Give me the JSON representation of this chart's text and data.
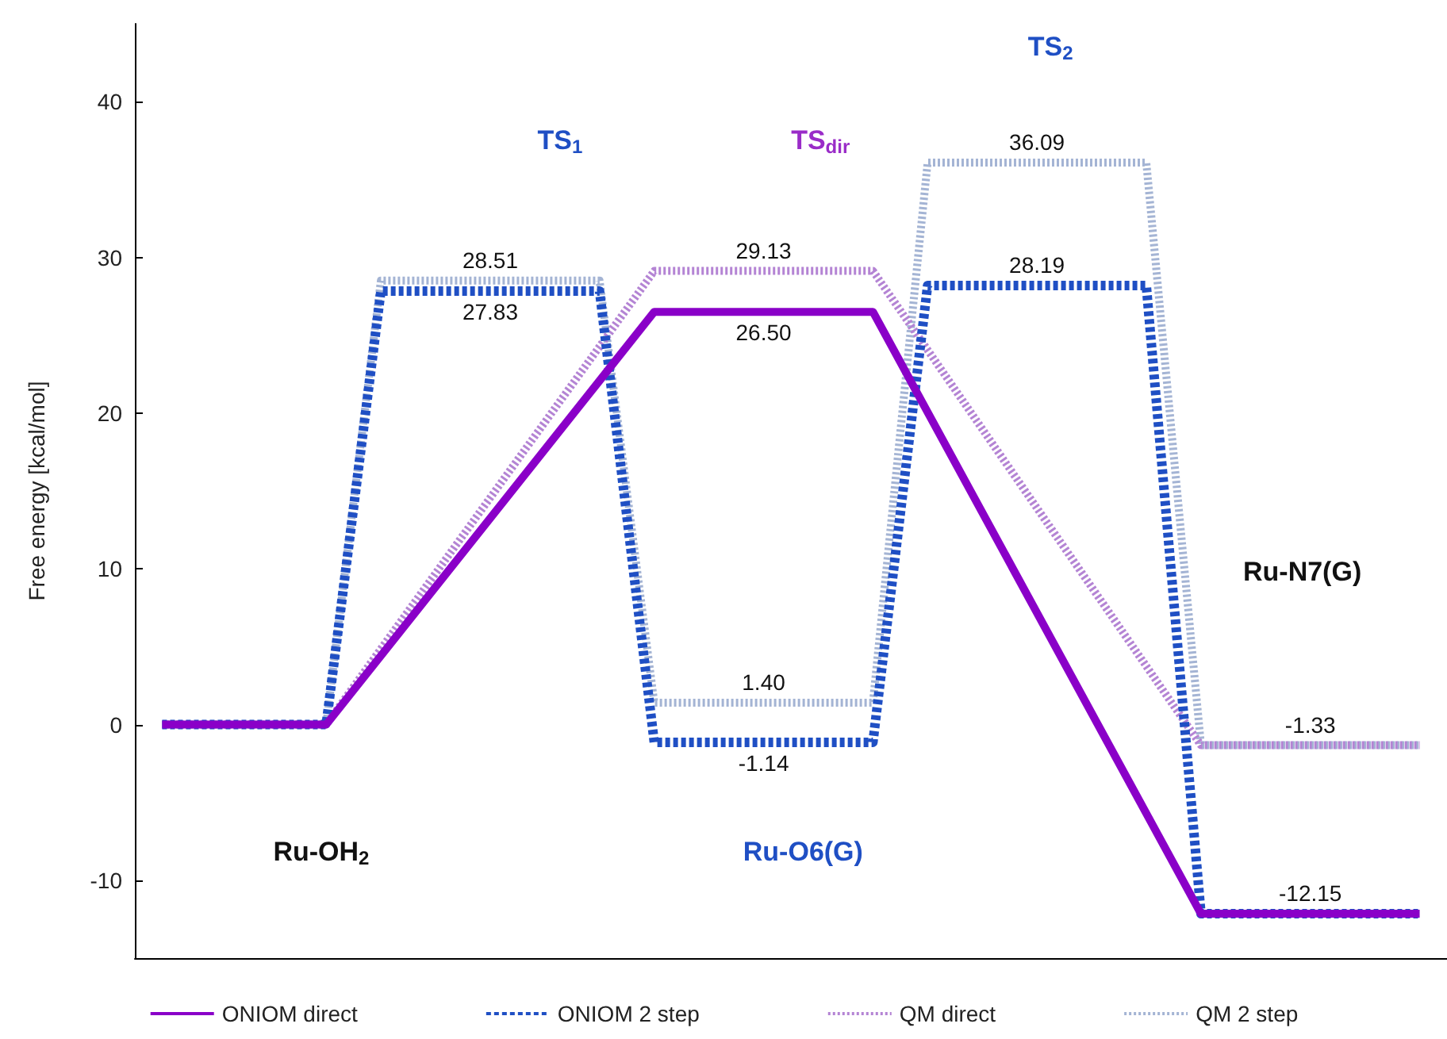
{
  "chart_data": {
    "type": "line",
    "ylabel": "Free energy [kcal/mol]",
    "categories": [
      null,
      null,
      null,
      null,
      null,
      null,
      null,
      null,
      null,
      null,
      null,
      null,
      null,
      null,
      null,
      null,
      null,
      null,
      null,
      null,
      null,
      null,
      null,
      null
    ],
    "ylim": [
      -15,
      45
    ],
    "yticks": [
      -10,
      0,
      10,
      20,
      30,
      40
    ],
    "grid": false,
    "legend": "bottom",
    "marker": "none",
    "series": [
      {
        "name": "ONIOM direct",
        "color": "#8a00c8",
        "line_style": "solid",
        "values": [
          0,
          0,
          0,
          0,
          null,
          null,
          null,
          null,
          null,
          26.5,
          26.5,
          26.5,
          26.5,
          26.5,
          null,
          null,
          null,
          null,
          null,
          -12.15,
          -12.15,
          -12.15,
          -12.15,
          -12.15
        ],
        "value_labels": [
          null,
          null,
          null,
          null,
          null,
          null,
          null,
          null,
          null,
          null,
          null,
          "26.50",
          null,
          null,
          null,
          null,
          null,
          null,
          null,
          null,
          null,
          null,
          null,
          null
        ]
      },
      {
        "name": "ONIOM 2 step",
        "color": "#1f4fc4",
        "line_style": "dashed",
        "values": [
          0,
          0,
          0,
          0,
          27.83,
          27.83,
          27.83,
          27.83,
          27.83,
          -1.14,
          -1.14,
          -1.14,
          -1.14,
          -1.14,
          28.19,
          28.19,
          28.19,
          28.19,
          28.19,
          -12.15,
          -12.15,
          -12.15,
          -12.15,
          -12.15
        ],
        "value_labels": [
          null,
          null,
          null,
          null,
          null,
          null,
          "27.83",
          null,
          null,
          null,
          null,
          "-1.14",
          null,
          null,
          null,
          null,
          "28.19",
          null,
          null,
          null,
          null,
          "-12.15",
          null,
          null
        ]
      },
      {
        "name": "QM direct",
        "color": "#b484d4",
        "line_style": "dotted",
        "values": [
          0,
          0,
          0,
          0,
          null,
          null,
          null,
          null,
          null,
          29.13,
          29.13,
          29.13,
          29.13,
          29.13,
          null,
          null,
          null,
          null,
          null,
          -1.33,
          -1.33,
          -1.33,
          -1.33,
          -1.33
        ],
        "value_labels": [
          null,
          null,
          null,
          null,
          null,
          null,
          null,
          null,
          null,
          null,
          null,
          "29.13",
          null,
          null,
          null,
          null,
          null,
          null,
          null,
          null,
          null,
          null,
          null,
          null
        ]
      },
      {
        "name": "QM 2 step",
        "color": "#a4b4d4",
        "line_style": "dotted",
        "values": [
          0,
          0,
          0,
          0,
          28.51,
          28.51,
          28.51,
          28.51,
          28.51,
          1.4,
          1.4,
          1.4,
          1.4,
          1.4,
          36.09,
          36.09,
          36.09,
          36.09,
          36.09,
          -1.33,
          -1.33,
          -1.33,
          -1.33,
          -1.33
        ],
        "value_labels": [
          null,
          null,
          null,
          null,
          null,
          null,
          "28.51",
          null,
          null,
          null,
          null,
          "1.40",
          null,
          null,
          null,
          null,
          "36.09",
          null,
          null,
          null,
          null,
          "-1.33",
          null,
          null
        ]
      }
    ],
    "annotations": [
      "TS$_{1}$",
      "TS$_{dir}$",
      "TS$_{2}$",
      "Ru-OH$_{2}$",
      "Ru-O6(G)",
      "Ru-N7(G)"
    ]
  }
}
